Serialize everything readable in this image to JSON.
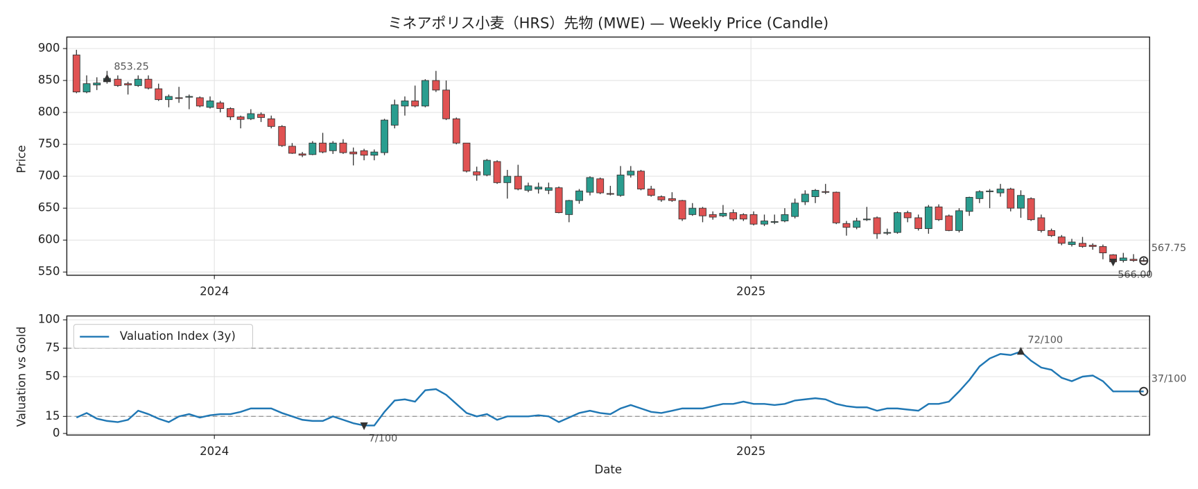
{
  "chart_data": [
    {
      "type": "candlestick",
      "title": "ミネアポリス小麦（HRS）先物 (MWE) — Weekly Price (Candle)",
      "ylabel": "Price",
      "x": [
        2023.743,
        2023.762,
        2023.781,
        2023.8,
        2023.82,
        2023.839,
        2023.858,
        2023.877,
        2023.896,
        2023.915,
        2023.934,
        2023.953,
        2023.973,
        2023.992,
        2024.011,
        2024.03,
        2024.049,
        2024.068,
        2024.087,
        2024.106,
        2024.126,
        2024.145,
        2024.164,
        2024.183,
        2024.202,
        2024.221,
        2024.24,
        2024.259,
        2024.279,
        2024.298,
        2024.317,
        2024.336,
        2024.355,
        2024.374,
        2024.393,
        2024.413,
        2024.432,
        2024.451,
        2024.47,
        2024.489,
        2024.508,
        2024.527,
        2024.546,
        2024.566,
        2024.585,
        2024.604,
        2024.623,
        2024.642,
        2024.661,
        2024.68,
        2024.7,
        2024.719,
        2024.738,
        2024.757,
        2024.776,
        2024.795,
        2024.814,
        2024.833,
        2024.853,
        2024.872,
        2024.891,
        2024.91,
        2024.929,
        2024.948,
        2024.967,
        2024.986,
        2025.005,
        2025.025,
        2025.044,
        2025.063,
        2025.082,
        2025.101,
        2025.12,
        2025.139,
        2025.159,
        2025.178,
        2025.197,
        2025.216,
        2025.235,
        2025.254,
        2025.273,
        2025.292,
        2025.312,
        2025.331,
        2025.35,
        2025.369,
        2025.388,
        2025.407,
        2025.426,
        2025.445,
        2025.465,
        2025.484,
        2025.503,
        2025.522,
        2025.541,
        2025.56,
        2025.579,
        2025.598,
        2025.618,
        2025.637,
        2025.656,
        2025.675,
        2025.694,
        2025.713,
        2025.732
      ],
      "open": [
        890,
        832,
        843,
        848,
        852,
        845,
        842,
        852,
        837,
        820,
        823,
        824,
        823,
        808,
        815,
        806,
        793,
        790,
        797,
        790,
        778,
        747,
        735,
        734,
        752,
        740,
        752,
        738,
        740,
        733,
        737,
        780,
        810,
        818,
        810,
        850,
        835,
        790,
        752,
        707,
        702,
        723,
        690,
        700,
        678,
        680,
        678,
        682,
        640,
        662,
        675,
        696,
        673,
        670,
        702,
        708,
        680,
        668,
        665,
        662,
        640,
        650,
        640,
        638,
        643,
        640,
        640,
        625,
        628,
        630,
        637,
        660,
        668,
        676,
        675,
        626,
        620,
        632,
        635,
        611,
        612,
        643,
        635,
        618,
        652,
        638,
        615,
        645,
        665,
        676,
        674,
        680,
        650,
        665,
        635,
        615,
        605,
        593,
        595,
        592,
        590,
        577,
        568,
        570,
        568
      ],
      "high": [
        898,
        858,
        855,
        865,
        858,
        848,
        858,
        858,
        845,
        828,
        840,
        828,
        825,
        825,
        818,
        808,
        795,
        805,
        800,
        795,
        780,
        752,
        738,
        755,
        768,
        755,
        758,
        745,
        743,
        742,
        790,
        820,
        825,
        842,
        852,
        865,
        850,
        792,
        752,
        715,
        727,
        725,
        710,
        718,
        690,
        690,
        690,
        684,
        663,
        680,
        700,
        698,
        685,
        716,
        716,
        710,
        685,
        670,
        675,
        663,
        658,
        652,
        645,
        655,
        648,
        642,
        645,
        640,
        640,
        650,
        665,
        678,
        680,
        688,
        676,
        630,
        635,
        652,
        637,
        618,
        645,
        646,
        640,
        655,
        656,
        640,
        650,
        668,
        678,
        680,
        688,
        682,
        678,
        667,
        640,
        618,
        608,
        602,
        605,
        595,
        593,
        578,
        580,
        578,
        572
      ],
      "low": [
        830,
        830,
        835,
        845,
        840,
        828,
        840,
        836,
        818,
        808,
        815,
        805,
        808,
        806,
        800,
        788,
        775,
        788,
        785,
        775,
        746,
        735,
        730,
        733,
        736,
        735,
        735,
        717,
        725,
        725,
        733,
        775,
        795,
        808,
        808,
        832,
        788,
        750,
        706,
        693,
        700,
        688,
        665,
        678,
        675,
        673,
        672,
        642,
        628,
        657,
        670,
        672,
        670,
        668,
        698,
        678,
        668,
        660,
        660,
        630,
        638,
        628,
        632,
        636,
        630,
        630,
        623,
        622,
        625,
        628,
        634,
        655,
        658,
        672,
        625,
        607,
        617,
        630,
        602,
        608,
        610,
        628,
        615,
        610,
        630,
        614,
        612,
        638,
        658,
        650,
        668,
        645,
        635,
        630,
        612,
        605,
        592,
        590,
        588,
        585,
        570,
        566,
        565,
        566,
        566
      ],
      "close": [
        832,
        845,
        846,
        853.25,
        842,
        843,
        852,
        838,
        820,
        825,
        822,
        825,
        810,
        818,
        806,
        793,
        789,
        798,
        792,
        778,
        748,
        736,
        733,
        752,
        738,
        752,
        737,
        735,
        733,
        738,
        788,
        812,
        818,
        810,
        850,
        835,
        790,
        752,
        708,
        702,
        725,
        690,
        700,
        680,
        685,
        683,
        682,
        643,
        662,
        677,
        698,
        674,
        672,
        702,
        708,
        680,
        670,
        663,
        662,
        633,
        650,
        638,
        636,
        642,
        633,
        633,
        625,
        630,
        629,
        640,
        658,
        672,
        678,
        675,
        627,
        620,
        630,
        633,
        610,
        612,
        643,
        635,
        618,
        652,
        632,
        615,
        646,
        667,
        676,
        677,
        680,
        650,
        670,
        632,
        615,
        607,
        595,
        597,
        590,
        590,
        580,
        566,
        572,
        568,
        567.75
      ],
      "up_color": "#2a9d8f",
      "down_color": "#e05252",
      "xlim": [
        2023.725,
        2025.743
      ],
      "xticks": [
        2024,
        2025
      ],
      "ylim": [
        545,
        918
      ],
      "yticks": [
        550,
        600,
        650,
        700,
        750,
        800,
        850,
        900
      ],
      "grid": true,
      "annotations": [
        {
          "x": 2023.8,
          "value": 853.25,
          "label": "853.25",
          "marker": "^"
        },
        {
          "x": 2025.675,
          "value": 566,
          "label": "566.00",
          "marker": "v"
        },
        {
          "x": 2025.732,
          "value": 567.75,
          "label": "567.75",
          "marker": "o"
        }
      ]
    },
    {
      "type": "line",
      "ylabel": "Valuation vs Gold",
      "xlabel": "Date",
      "x": [
        2023.743,
        2023.762,
        2023.781,
        2023.8,
        2023.82,
        2023.839,
        2023.858,
        2023.877,
        2023.896,
        2023.915,
        2023.934,
        2023.953,
        2023.973,
        2023.992,
        2024.011,
        2024.03,
        2024.049,
        2024.068,
        2024.087,
        2024.106,
        2024.126,
        2024.145,
        2024.164,
        2024.183,
        2024.202,
        2024.221,
        2024.24,
        2024.259,
        2024.279,
        2024.298,
        2024.317,
        2024.336,
        2024.355,
        2024.374,
        2024.393,
        2024.413,
        2024.432,
        2024.451,
        2024.47,
        2024.489,
        2024.508,
        2024.527,
        2024.546,
        2024.566,
        2024.585,
        2024.604,
        2024.623,
        2024.642,
        2024.661,
        2024.68,
        2024.7,
        2024.719,
        2024.738,
        2024.757,
        2024.776,
        2024.795,
        2024.814,
        2024.833,
        2024.853,
        2024.872,
        2024.891,
        2024.91,
        2024.929,
        2024.948,
        2024.967,
        2024.986,
        2025.005,
        2025.025,
        2025.044,
        2025.063,
        2025.082,
        2025.101,
        2025.12,
        2025.139,
        2025.159,
        2025.178,
        2025.197,
        2025.216,
        2025.235,
        2025.254,
        2025.273,
        2025.292,
        2025.312,
        2025.331,
        2025.35,
        2025.369,
        2025.388,
        2025.407,
        2025.426,
        2025.445,
        2025.465,
        2025.484,
        2025.503,
        2025.522,
        2025.541,
        2025.56,
        2025.579,
        2025.598,
        2025.618,
        2025.637,
        2025.656,
        2025.675,
        2025.694,
        2025.713,
        2025.732
      ],
      "series": [
        {
          "name": "Valuation Index (3y)",
          "color": "#1f77b4",
          "values": [
            14,
            18,
            13,
            11,
            10,
            12,
            20,
            17,
            13,
            10,
            15,
            17,
            14,
            16,
            17,
            17,
            19,
            22,
            22,
            22,
            18,
            15,
            12,
            11,
            11,
            15,
            12,
            9,
            7,
            7,
            19,
            29,
            30,
            28,
            38,
            39,
            34,
            26,
            18,
            15,
            17,
            12,
            15,
            15,
            15,
            16,
            15,
            10,
            14,
            18,
            20,
            18,
            17,
            22,
            25,
            22,
            19,
            18,
            20,
            22,
            22,
            22,
            24,
            26,
            26,
            28,
            26,
            26,
            25,
            26,
            29,
            30,
            31,
            30,
            26,
            24,
            23,
            23,
            20,
            22,
            22,
            21,
            20,
            26,
            26,
            28,
            37,
            47,
            59,
            66,
            70,
            69,
            72,
            64,
            58,
            56,
            49,
            46,
            50,
            51,
            46,
            37,
            37,
            37,
            37
          ]
        }
      ],
      "reference_lines": [
        15,
        75
      ],
      "legend": "upper left",
      "xlim": [
        2023.725,
        2025.743
      ],
      "xticks": [
        2024,
        2025
      ],
      "ylim": [
        -1.4,
        103.4
      ],
      "yticks": [
        0,
        15,
        50,
        75,
        100
      ],
      "grid": true,
      "annotations": [
        {
          "x": 2025.503,
          "value": 72,
          "label": "72/100",
          "marker": "^"
        },
        {
          "x": 2024.279,
          "value": 7,
          "label": "7/100",
          "marker": "v"
        },
        {
          "x": 2025.732,
          "value": 37,
          "label": "37/100",
          "marker": "o"
        }
      ]
    }
  ]
}
